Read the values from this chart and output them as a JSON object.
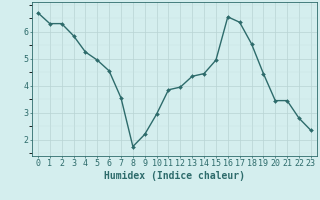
{
  "x": [
    0,
    1,
    2,
    3,
    4,
    5,
    6,
    7,
    8,
    9,
    10,
    11,
    12,
    13,
    14,
    15,
    16,
    17,
    18,
    19,
    20,
    21,
    22,
    23
  ],
  "y": [
    6.7,
    6.3,
    6.3,
    5.85,
    5.25,
    4.95,
    4.55,
    3.55,
    1.75,
    2.2,
    2.95,
    3.85,
    3.95,
    4.35,
    4.45,
    4.95,
    6.55,
    6.35,
    5.55,
    4.45,
    3.45,
    3.45,
    2.8,
    2.35
  ],
  "line_color": "#2d6b6b",
  "marker": "D",
  "marker_size": 2.0,
  "line_width": 1.0,
  "bg_color": "#d4eeee",
  "grid_color_major": "#b8d4d4",
  "grid_color_minor": "#c8e4e4",
  "xlabel": "Humidex (Indice chaleur)",
  "xlabel_fontsize": 7,
  "xlabel_color": "#2d6b6b",
  "tick_color": "#2d6b6b",
  "tick_fontsize": 6,
  "ytick_values": [
    2,
    3,
    4,
    5,
    6
  ],
  "ylim": [
    1.4,
    7.1
  ],
  "xlim": [
    -0.5,
    23.5
  ],
  "xtick_values": [
    0,
    1,
    2,
    3,
    4,
    5,
    6,
    7,
    8,
    9,
    10,
    11,
    12,
    13,
    14,
    15,
    16,
    17,
    18,
    19,
    20,
    21,
    22,
    23
  ]
}
